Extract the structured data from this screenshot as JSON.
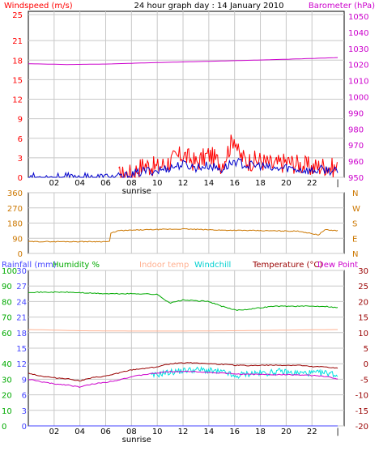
{
  "header": {
    "left_label": "Windspeed (m/s)",
    "title": "24 hour graph day : 14 January 2010",
    "right_label": "Barometer (hPa)"
  },
  "colors": {
    "windspeed": "#ff0000",
    "wind_avg": "#0000cc",
    "barometer": "#cc00cc",
    "direction": "#cc7700",
    "humidity": "#00aa00",
    "indoor": "#ffb090",
    "windchill": "#00e0e0",
    "temperature": "#990000",
    "dewpoint": "#cc00cc",
    "rainfall": "#4444ff",
    "grid": "#c8c8c8"
  },
  "sunrise_label": "sunrise",
  "chart_data": [
    {
      "type": "line",
      "name": "wind-barometer",
      "x_ticks": [
        "02",
        "04",
        "06",
        "08",
        "10",
        "12",
        "14",
        "16",
        "18",
        "20",
        "22"
      ],
      "x_end_tick": "|",
      "left_axis": {
        "label": "Windspeed (m/s)",
        "ticks": [
          0,
          3,
          6,
          9,
          12,
          15,
          18,
          21,
          25
        ],
        "range": [
          0,
          25.5
        ]
      },
      "right_axis": {
        "label": "Barometer (hPa)",
        "ticks": [
          950,
          960,
          970,
          980,
          990,
          1000,
          1010,
          1020,
          1030,
          1040,
          1050
        ],
        "range": [
          950,
          1053
        ]
      },
      "series": [
        {
          "name": "Windspeed",
          "axis": "left",
          "x": [
            7.0,
            8.0,
            9.0,
            10.0,
            11.0,
            12.0,
            13.0,
            14.0,
            15.0,
            15.7,
            16.0,
            16.3,
            17.0,
            18.0,
            19.0,
            20.0,
            21.0,
            22.0,
            23.0,
            24.0
          ],
          "y": [
            0.2,
            0.6,
            2.0,
            1.5,
            2.5,
            3.5,
            2.2,
            3.5,
            2.0,
            5.0,
            6.5,
            3.5,
            2.5,
            2.6,
            1.8,
            2.4,
            2.0,
            1.5,
            1.8,
            1.2
          ]
        },
        {
          "name": "Wind average",
          "axis": "left",
          "x": [
            0,
            7.0,
            8.0,
            9.0,
            10.0,
            11.0,
            12.0,
            13.0,
            14.0,
            15.0,
            16.0,
            17.0,
            18.0,
            19.0,
            20.0,
            21.0,
            22.0,
            23.0,
            24.0
          ],
          "y": [
            0,
            0,
            0.3,
            1.0,
            1.0,
            1.5,
            2.0,
            1.5,
            1.8,
            1.2,
            2.5,
            1.8,
            1.8,
            1.2,
            1.5,
            1.2,
            1.0,
            1.2,
            0.8
          ]
        },
        {
          "name": "Barometer",
          "axis": "right",
          "x": [
            0,
            3,
            6,
            9,
            12,
            15,
            18,
            21,
            24
          ],
          "y": [
            1020.5,
            1020.0,
            1020.3,
            1021.0,
            1021.6,
            1022.2,
            1022.8,
            1023.5,
            1024.3
          ]
        }
      ]
    },
    {
      "type": "line",
      "name": "wind-direction",
      "left_axis": {
        "ticks": [
          0,
          90,
          180,
          270,
          360
        ],
        "range": [
          0,
          360
        ]
      },
      "right_axis": {
        "ticks": [
          "N",
          "W",
          "S",
          "E",
          "N"
        ]
      },
      "series": [
        {
          "name": "Direction",
          "x": [
            0,
            6.3,
            6.4,
            7.0,
            9.0,
            12.0,
            15.0,
            18.0,
            21.0,
            22.5,
            23.0,
            24.0
          ],
          "y": [
            70,
            70,
            120,
            135,
            140,
            145,
            138,
            135,
            132,
            110,
            140,
            135
          ]
        }
      ]
    },
    {
      "type": "line",
      "name": "temperature-humidity",
      "header_labels": {
        "rainfall": "Rainfall (mm)",
        "humidity": "Humidity %",
        "indoor": "Indoor temp",
        "windchill": "Windchill",
        "temperature": "Temperature (°C)",
        "dewpoint": "Dew Point"
      },
      "rain_axis": {
        "ticks": [
          0,
          3,
          6,
          9,
          12,
          15,
          18,
          21,
          24,
          27,
          30
        ],
        "range": [
          0,
          30
        ]
      },
      "humidity_axis": {
        "ticks": [
          0,
          10,
          20,
          30,
          40,
          60,
          70,
          80,
          90,
          100
        ],
        "range": [
          0,
          100
        ]
      },
      "temp_axis": {
        "ticks": [
          30,
          25,
          20,
          15,
          10,
          5,
          0,
          -5,
          -10,
          -15,
          -20
        ],
        "range": [
          -20,
          30
        ]
      },
      "series": [
        {
          "name": "Humidity %",
          "axis": "humidity",
          "x": [
            0,
            3,
            6,
            9,
            10,
            11.0,
            12.0,
            14.0,
            15.0,
            15.8,
            16.2,
            17.0,
            18.0,
            19.0,
            20.0,
            21.0,
            22.0,
            23.0,
            24.0
          ],
          "y": [
            86,
            86,
            85,
            85,
            84.5,
            79,
            81,
            80,
            77,
            75,
            74.5,
            75,
            76,
            77,
            77,
            77,
            77,
            77,
            76
          ]
        },
        {
          "name": "Indoor temp",
          "axis": "temp",
          "x": [
            0,
            4,
            8,
            12,
            16,
            20,
            24
          ],
          "y": [
            11.0,
            10.6,
            10.5,
            10.5,
            10.6,
            10.8,
            11.0
          ]
        },
        {
          "name": "Windchill",
          "axis": "temp",
          "x": [
            9.5,
            10.5,
            11.5,
            12.5,
            13.5,
            14.5,
            15.5,
            16.0,
            16.5,
            17.5,
            18.5,
            19.5,
            20.5,
            21.5,
            22.5,
            23.5,
            24.0
          ],
          "y": [
            -4.0,
            -3.0,
            -2.5,
            -2.0,
            -2.0,
            -2.5,
            -3.0,
            -4.5,
            -3.5,
            -3.0,
            -3.0,
            -2.5,
            -3.0,
            -3.0,
            -3.0,
            -3.0,
            -4.0
          ]
        },
        {
          "name": "Temperature (°C)",
          "axis": "temp",
          "x": [
            0,
            1.0,
            2.0,
            3.0,
            4.0,
            5.0,
            6.0,
            7.0,
            8.0,
            9.0,
            10.0,
            11.0,
            12.0,
            13.0,
            14.0,
            15.0,
            16.0,
            17.0,
            18.0,
            19.0,
            20.0,
            21.0,
            22.0,
            23.0,
            24.0
          ],
          "y": [
            -3.0,
            -4.0,
            -4.5,
            -4.8,
            -5.5,
            -4.5,
            -4.0,
            -3.0,
            -2.0,
            -1.5,
            -1.0,
            0.0,
            0.3,
            0.3,
            0.0,
            -0.2,
            -0.5,
            -0.6,
            -0.5,
            -0.5,
            -0.5,
            -0.5,
            -1.0,
            -1.0,
            -1.5
          ]
        },
        {
          "name": "Dew Point",
          "axis": "temp",
          "x": [
            0,
            1.0,
            2.0,
            3.0,
            4.0,
            5.0,
            6.0,
            7.0,
            8.0,
            9.0,
            10.0,
            11.0,
            12.0,
            13.0,
            14.0,
            15.0,
            16.0,
            17.0,
            18.0,
            19.0,
            20.0,
            21.0,
            22.0,
            23.0,
            24.0
          ],
          "y": [
            -5.0,
            -5.8,
            -6.5,
            -6.8,
            -7.5,
            -6.5,
            -6.0,
            -5.2,
            -4.2,
            -3.5,
            -3.0,
            -2.5,
            -2.5,
            -2.5,
            -2.8,
            -3.0,
            -3.3,
            -3.4,
            -3.4,
            -3.5,
            -3.5,
            -3.6,
            -3.8,
            -4.0,
            -5.0
          ]
        },
        {
          "name": "Rainfall",
          "axis": "rain",
          "x": [
            0,
            24
          ],
          "y": [
            0,
            0
          ]
        }
      ]
    }
  ]
}
